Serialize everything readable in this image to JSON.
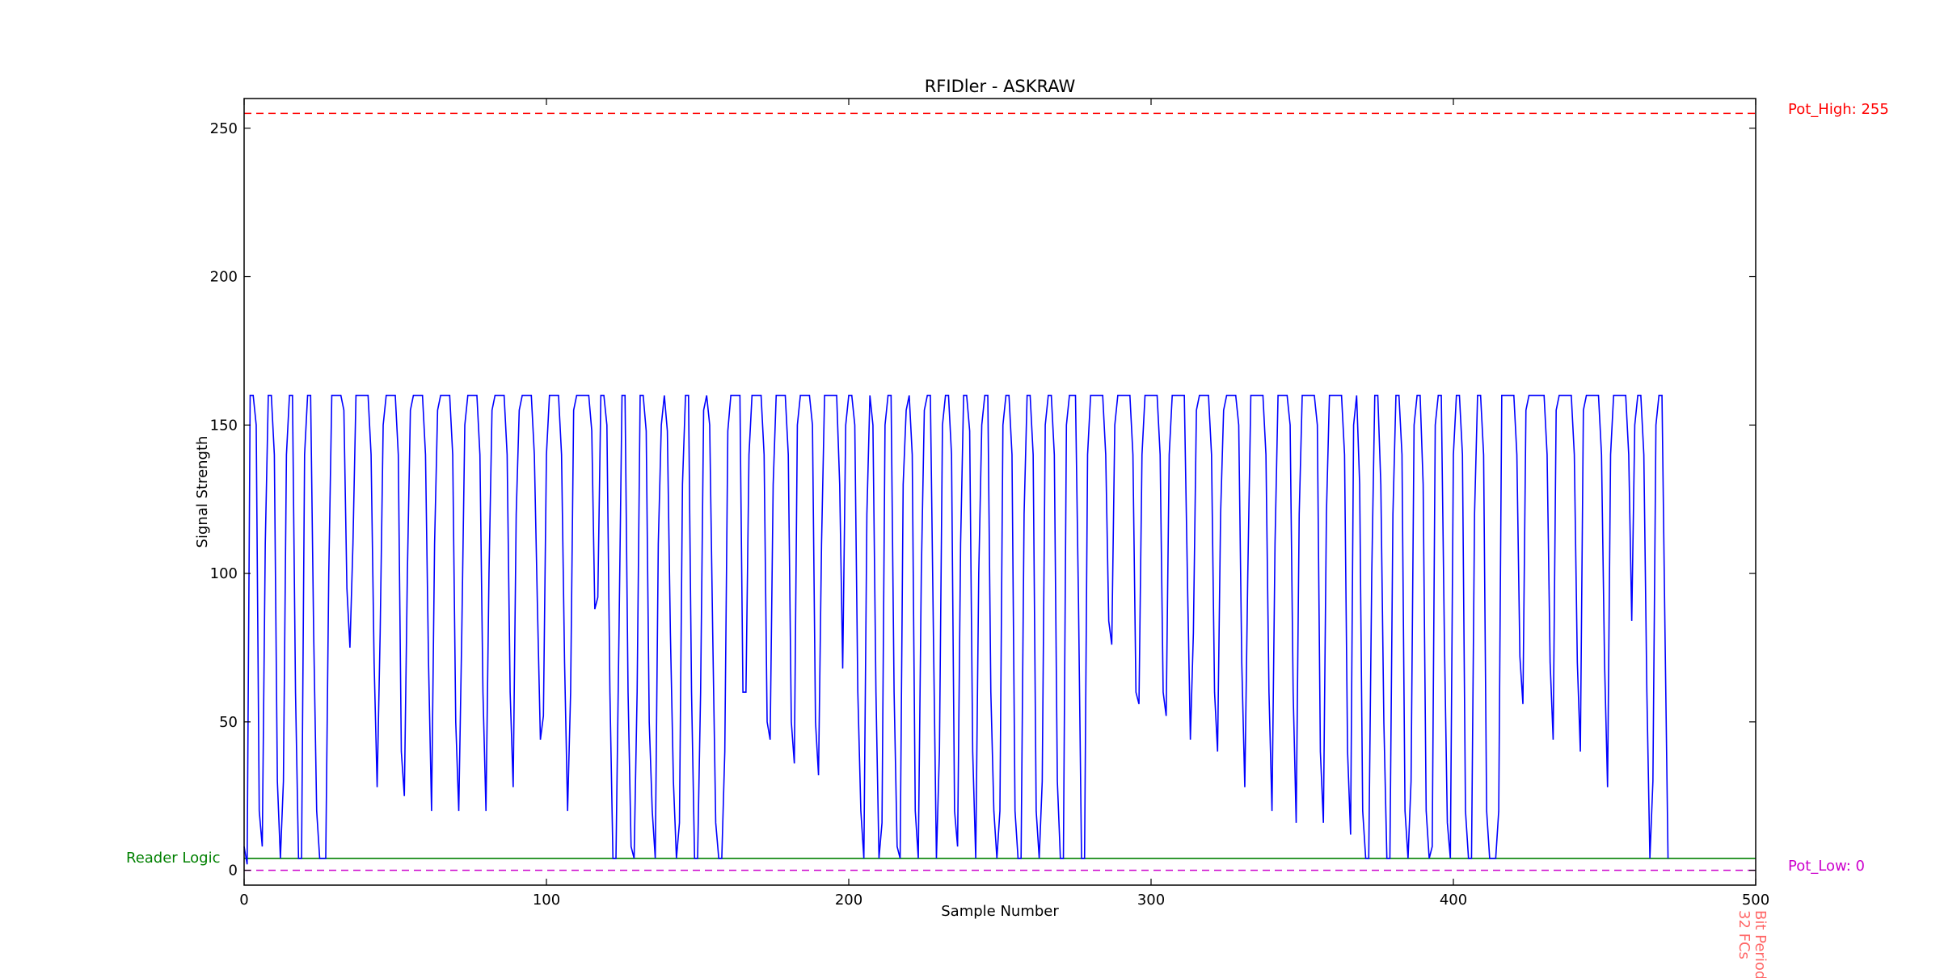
{
  "chart_data": {
    "type": "line",
    "title": "RFIDler - ASKRAW",
    "xlabel": "Sample Number",
    "ylabel": "Signal Strength",
    "xlim": [
      0,
      500
    ],
    "ylim": [
      -5,
      260
    ],
    "x_ticks": [
      0,
      100,
      200,
      300,
      400,
      500
    ],
    "y_ticks": [
      0,
      50,
      100,
      150,
      200,
      250
    ],
    "grid": false,
    "series": [
      {
        "color": "#0000ff",
        "x_start": 0,
        "x_step": 1,
        "values": [
          8,
          2,
          160,
          160,
          150,
          20,
          8,
          110,
          160,
          160,
          140,
          30,
          4,
          30,
          140,
          160,
          160,
          60,
          4,
          4,
          140,
          160,
          160,
          80,
          20,
          4,
          4,
          4,
          100,
          160,
          160,
          160,
          160,
          155,
          95,
          75,
          110,
          160,
          160,
          160,
          160,
          160,
          140,
          70,
          28,
          80,
          150,
          160,
          160,
          160,
          160,
          140,
          40,
          25,
          100,
          155,
          160,
          160,
          160,
          160,
          140,
          70,
          20,
          110,
          155,
          160,
          160,
          160,
          160,
          140,
          50,
          20,
          80,
          150,
          160,
          160,
          160,
          160,
          140,
          60,
          20,
          100,
          155,
          160,
          160,
          160,
          160,
          140,
          60,
          28,
          120,
          155,
          160,
          160,
          160,
          160,
          140,
          90,
          44,
          52,
          140,
          160,
          160,
          160,
          160,
          140,
          70,
          20,
          60,
          155,
          160,
          160,
          160,
          160,
          160,
          148,
          88,
          92,
          160,
          160,
          150,
          60,
          4,
          4,
          80,
          160,
          160,
          60,
          8,
          4,
          60,
          160,
          160,
          148,
          50,
          20,
          4,
          110,
          150,
          160,
          148,
          80,
          30,
          4,
          16,
          130,
          160,
          160,
          60,
          4,
          4,
          60,
          155,
          160,
          150,
          80,
          16,
          4,
          4,
          40,
          148,
          160,
          160,
          160,
          160,
          60,
          60,
          140,
          160,
          160,
          160,
          160,
          140,
          50,
          44,
          130,
          160,
          160,
          160,
          160,
          140,
          50,
          36,
          150,
          160,
          160,
          160,
          160,
          150,
          50,
          32,
          110,
          160,
          160,
          160,
          160,
          160,
          130,
          68,
          150,
          160,
          160,
          150,
          60,
          20,
          4,
          120,
          160,
          150,
          60,
          4,
          16,
          150,
          160,
          160,
          60,
          8,
          4,
          130,
          155,
          160,
          140,
          20,
          4,
          100,
          155,
          160,
          160,
          80,
          4,
          40,
          150,
          160,
          160,
          140,
          20,
          8,
          110,
          160,
          160,
          148,
          40,
          4,
          100,
          150,
          160,
          160,
          60,
          20,
          4,
          20,
          150,
          160,
          160,
          140,
          20,
          4,
          4,
          120,
          160,
          160,
          140,
          20,
          4,
          30,
          150,
          160,
          160,
          140,
          30,
          4,
          4,
          150,
          160,
          160,
          160,
          90,
          4,
          4,
          140,
          160,
          160,
          160,
          160,
          160,
          140,
          84,
          76,
          150,
          160,
          160,
          160,
          160,
          160,
          140,
          60,
          56,
          140,
          160,
          160,
          160,
          160,
          160,
          140,
          60,
          52,
          140,
          160,
          160,
          160,
          160,
          160,
          100,
          44,
          80,
          155,
          160,
          160,
          160,
          160,
          140,
          60,
          40,
          120,
          155,
          160,
          160,
          160,
          160,
          150,
          70,
          28,
          100,
          160,
          160,
          160,
          160,
          160,
          140,
          60,
          20,
          110,
          160,
          160,
          160,
          160,
          150,
          60,
          16,
          120,
          160,
          160,
          160,
          160,
          160,
          150,
          40,
          16,
          120,
          160,
          160,
          160,
          160,
          160,
          140,
          40,
          12,
          150,
          160,
          130,
          20,
          4,
          4,
          100,
          160,
          160,
          130,
          50,
          4,
          4,
          120,
          160,
          160,
          140,
          20,
          4,
          30,
          150,
          160,
          160,
          130,
          20,
          4,
          8,
          150,
          160,
          160,
          80,
          16,
          4,
          140,
          160,
          160,
          140,
          20,
          4,
          4,
          120,
          160,
          160,
          140,
          20,
          4,
          4,
          4,
          20,
          160,
          160,
          160,
          160,
          160,
          140,
          72,
          56,
          155,
          160,
          160,
          160,
          160,
          160,
          160,
          140,
          70,
          44,
          155,
          160,
          160,
          160,
          160,
          160,
          140,
          70,
          40,
          155,
          160,
          160,
          160,
          160,
          160,
          140,
          70,
          28,
          140,
          160,
          160,
          160,
          160,
          160,
          140,
          84,
          150,
          160,
          160,
          140,
          60,
          4,
          30,
          150,
          160,
          160,
          80,
          4
        ]
      }
    ],
    "reference_lines": [
      {
        "label": "Pot_High: 255",
        "value": 255,
        "color": "#ff0000",
        "style": "dashed"
      },
      {
        "label": "Pot_Low: 0",
        "value": 0,
        "color": "#cc00cc",
        "style": "dashed"
      },
      {
        "label": "Reader Logic",
        "value": 4,
        "color": "#008000",
        "style": "solid"
      }
    ],
    "annotations": [
      {
        "text": "Bit Period",
        "color": "#ff6666"
      },
      {
        "text": "32 FCs",
        "color": "#ff6666"
      }
    ]
  }
}
